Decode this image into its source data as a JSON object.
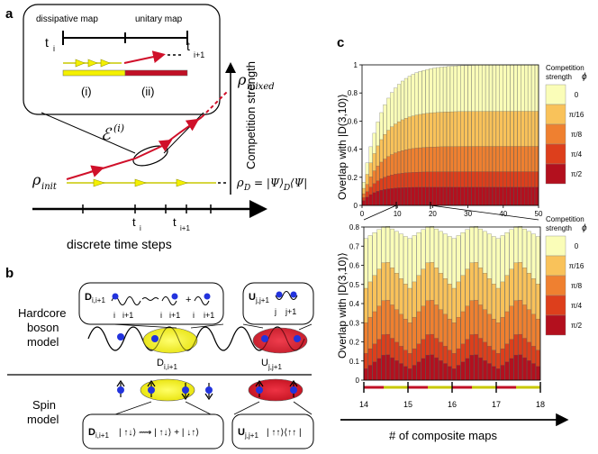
{
  "panel_a": {
    "label": "a",
    "inset_title_dissipative": "dissipative map",
    "inset_title_unitary": "unitary map",
    "inset_t_i": "t",
    "inset_t_i_sub": "i",
    "inset_t_i1": "t",
    "inset_t_i1_sub": "i+1",
    "inset_i": "(i)",
    "inset_ii": "(ii)",
    "map_label": "ℰ",
    "map_label_sup": "(i)",
    "rho_mixed": "ρ",
    "rho_mixed_sub": "mixed",
    "rho_init": "ρ",
    "rho_init_sub": "init",
    "rho_D": "ρ",
    "rho_D_sub": "D",
    "rho_D_rhs": "= |Ψ⟩",
    "rho_D_rhs_sub": "D",
    "rho_D_rhs_end": "⟨Ψ|",
    "competition_axis": "Competition strength",
    "time_t_i": "t",
    "time_t_i_sub": "i",
    "time_t_i1": "t",
    "time_t_i1_sub": "i+1",
    "time_axis_label": "discrete time steps"
  },
  "panel_b": {
    "label": "b",
    "hardcore_line1": "Hardcore",
    "hardcore_line2": "boson",
    "hardcore_line3": "model",
    "spin_line1": "Spin",
    "spin_line2": "model",
    "box_D": "D",
    "box_D_sub": "i,i+1",
    "box_U": "U",
    "box_U_sub": "j,j+1",
    "site_i": "i",
    "site_i1": "i+1",
    "site_j": "j",
    "site_j1": "j+1",
    "plus": "+",
    "ell_D": "D",
    "ell_D_sub": "i,i+1",
    "ell_U": "U",
    "ell_U_sub": "j,j+1",
    "spin_D_expr": "| ↑↓⟩ ⟿ | ↑↓⟩ + | ↓↑⟩",
    "spin_U_expr": "| ↑↑⟩⟨↑↑ |"
  },
  "panel_c": {
    "label": "c",
    "xlabel": "# of composite maps",
    "ylabel": "Overlap with |D(3,10)⟩",
    "legend_title_1": "Competition",
    "legend_title_2": "strength",
    "legend_symbol": "ϕ",
    "legend_labels": [
      "0",
      "π/16",
      "π/8",
      "π/4",
      "π/2"
    ],
    "legend_colors": [
      "#fafdb8",
      "#f9c25a",
      "#ef8030",
      "#dd3f1c",
      "#b3101e"
    ]
  },
  "chart_data": [
    {
      "type": "bar",
      "title": "",
      "xlabel": "",
      "ylabel": "Overlap with |D(3,10)⟩",
      "xlim": [
        0,
        50
      ],
      "ylim": [
        0,
        1.0
      ],
      "xticks": [
        "0",
        "10",
        "20",
        "30",
        "40",
        "50"
      ],
      "yticks": [
        "0",
        "0.2",
        "0.4",
        "0.6",
        "0.8",
        "1"
      ],
      "series": [
        {
          "name": "0",
          "asymptote": 1.0,
          "rate": 0.18
        },
        {
          "name": "π/16",
          "asymptote": 0.67,
          "rate": 0.2
        },
        {
          "name": "π/8",
          "asymptote": 0.42,
          "rate": 0.22
        },
        {
          "name": "π/4",
          "asymptote": 0.24,
          "rate": 0.26
        },
        {
          "name": "π/2",
          "asymptote": 0.13,
          "rate": 0.3
        }
      ]
    },
    {
      "type": "bar",
      "title": "",
      "xlabel": "# of composite maps",
      "ylabel": "Overlap with |D(3,10)⟩",
      "xlim": [
        14,
        18
      ],
      "ylim": [
        0,
        0.8
      ],
      "xticks": [
        "14",
        "15",
        "16",
        "17",
        "18"
      ],
      "yticks": [
        "0",
        "0.1",
        "0.2",
        "0.3",
        "0.4",
        "0.5",
        "0.6",
        "0.7",
        "0.8"
      ],
      "steps_per_map": 10,
      "series": [
        {
          "name": "0",
          "low": 0.74,
          "high": 0.81
        },
        {
          "name": "π/16",
          "low": 0.48,
          "high": 0.63
        },
        {
          "name": "π/8",
          "low": 0.3,
          "high": 0.43
        },
        {
          "name": "π/4",
          "low": 0.14,
          "high": 0.25
        },
        {
          "name": "π/2",
          "low": 0.06,
          "high": 0.14
        }
      ]
    }
  ]
}
